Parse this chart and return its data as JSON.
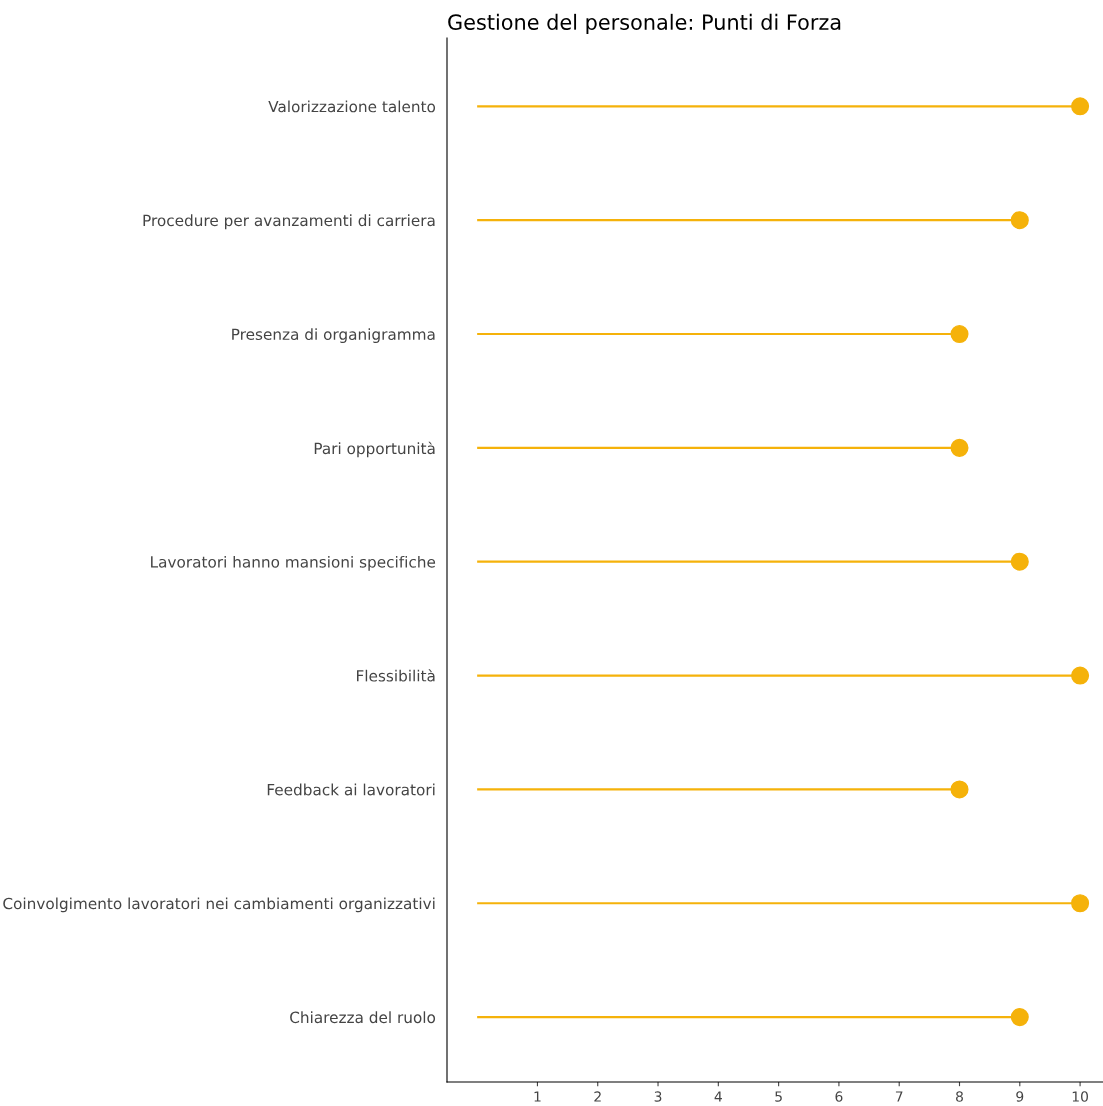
{
  "chart_data": {
    "type": "lollipop",
    "orientation": "horizontal",
    "title": "Gestione del personale: Punti di Forza",
    "categories": [
      "Valorizzazione talento",
      "Procedure per avanzamenti di carriera",
      "Presenza di organigramma",
      "Pari opportunità",
      "Lavoratori hanno mansioni specifiche",
      "Flessibilità",
      "Feedback ai lavoratori",
      "Coinvolgimento lavoratori nei cambiamenti organizzativi",
      "Chiarezza del ruolo"
    ],
    "values": [
      10,
      9,
      8,
      8,
      9,
      10,
      8,
      10,
      9
    ],
    "color": "#f5b20a",
    "marker": "circle",
    "grid": false,
    "xlim": [
      -0.5,
      10.38
    ],
    "xticks": [
      1,
      2,
      3,
      4,
      5,
      6,
      7,
      8,
      9,
      10
    ]
  }
}
